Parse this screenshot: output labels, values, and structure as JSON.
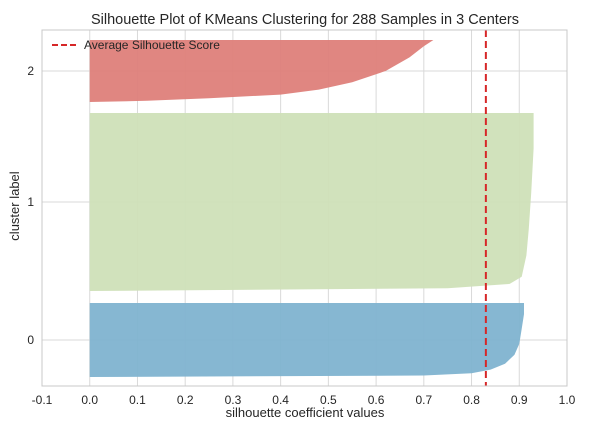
{
  "chart_data": {
    "type": "silhouette",
    "title": "Silhouette Plot of KMeans Clustering for 288 Samples in 3 Centers",
    "xlabel": "silhouette coefficient values",
    "ylabel": "cluster label",
    "xlim": [
      -0.1,
      1.0
    ],
    "xticks": [
      "-0.1",
      "0.0",
      "0.1",
      "0.2",
      "0.3",
      "0.4",
      "0.5",
      "0.6",
      "0.7",
      "0.8",
      "0.9",
      "1.0"
    ],
    "yticks": [
      "0",
      "1",
      "2"
    ],
    "grid": true,
    "legend_position": "top-left",
    "average_silhouette_score": 0.83,
    "average_line_label": "Average Silhouette Score",
    "average_line_color": "#d62728",
    "clusters": [
      {
        "label": "0",
        "color": "#7fb3d0",
        "max_value": 0.91,
        "min_value": 0.0,
        "profile": [
          [
            0.0,
            0.91
          ],
          [
            0.15,
            0.91
          ],
          [
            0.35,
            0.905
          ],
          [
            0.55,
            0.9
          ],
          [
            0.7,
            0.89
          ],
          [
            0.82,
            0.87
          ],
          [
            0.9,
            0.84
          ],
          [
            0.95,
            0.8
          ],
          [
            0.98,
            0.7
          ],
          [
            1.0,
            0.0
          ]
        ]
      },
      {
        "label": "1",
        "color": "#cfe0b8",
        "max_value": 0.93,
        "min_value": 0.0,
        "profile": [
          [
            0.0,
            0.93
          ],
          [
            0.2,
            0.93
          ],
          [
            0.45,
            0.925
          ],
          [
            0.65,
            0.92
          ],
          [
            0.8,
            0.915
          ],
          [
            0.92,
            0.905
          ],
          [
            0.96,
            0.88
          ],
          [
            0.985,
            0.75
          ],
          [
            1.0,
            0.0
          ]
        ]
      },
      {
        "label": "2",
        "color": "#de7f7a",
        "max_value": 0.72,
        "min_value": 0.0,
        "profile": [
          [
            0.0,
            0.72
          ],
          [
            0.1,
            0.7
          ],
          [
            0.28,
            0.67
          ],
          [
            0.5,
            0.62
          ],
          [
            0.68,
            0.55
          ],
          [
            0.8,
            0.48
          ],
          [
            0.88,
            0.4
          ],
          [
            0.94,
            0.25
          ],
          [
            0.98,
            0.12
          ],
          [
            1.0,
            0.0
          ]
        ]
      }
    ]
  }
}
